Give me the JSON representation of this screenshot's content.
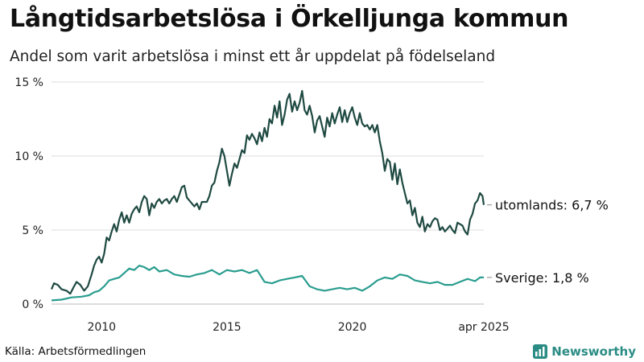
{
  "title": "Långtidsarbetslösa i Örkelljunga kommun",
  "subtitle": "Andel som varit arbetslösa i minst ett år uppdelat på födelseland",
  "source": "Källa: Arbetsförmedlingen",
  "brand": "Newsworthy",
  "chart_data": {
    "type": "line",
    "title": "Långtidsarbetslösa i Örkelljunga kommun",
    "subtitle": "Andel som varit arbetslösa i minst ett år uppdelat på födelseland",
    "x_range": [
      2008.0,
      2025.25
    ],
    "ylim": [
      0,
      15
    ],
    "y_ticks": [
      {
        "value": 0,
        "label": "0 %"
      },
      {
        "value": 5,
        "label": "5 %"
      },
      {
        "value": 10,
        "label": "10 %"
      },
      {
        "value": 15,
        "label": "15 %"
      }
    ],
    "x_ticks": [
      {
        "value": 2010,
        "label": "2010"
      },
      {
        "value": 2015,
        "label": "2015"
      },
      {
        "value": 2020,
        "label": "2020"
      },
      {
        "value": 2025.25,
        "label": "apr 2025"
      }
    ],
    "grid": "horizontal",
    "legend": "end-labels",
    "series": [
      {
        "name": "utomlands",
        "end_label": "utomlands: 6,7 %",
        "color": "#1f4a42",
        "points": [
          [
            2008.0,
            1.0
          ],
          [
            2008.1,
            1.4
          ],
          [
            2008.25,
            1.3
          ],
          [
            2008.4,
            1.0
          ],
          [
            2008.6,
            0.9
          ],
          [
            2008.75,
            0.7
          ],
          [
            2008.9,
            1.2
          ],
          [
            2009.0,
            1.5
          ],
          [
            2009.15,
            1.3
          ],
          [
            2009.3,
            0.9
          ],
          [
            2009.45,
            1.2
          ],
          [
            2009.6,
            2.0
          ],
          [
            2009.7,
            2.6
          ],
          [
            2009.8,
            3.0
          ],
          [
            2009.9,
            3.2
          ],
          [
            2010.0,
            2.8
          ],
          [
            2010.1,
            3.4
          ],
          [
            2010.2,
            4.5
          ],
          [
            2010.3,
            4.3
          ],
          [
            2010.4,
            4.9
          ],
          [
            2010.5,
            5.4
          ],
          [
            2010.6,
            4.9
          ],
          [
            2010.7,
            5.7
          ],
          [
            2010.8,
            6.2
          ],
          [
            2010.9,
            5.5
          ],
          [
            2011.0,
            6.0
          ],
          [
            2011.1,
            5.5
          ],
          [
            2011.2,
            6.1
          ],
          [
            2011.3,
            6.4
          ],
          [
            2011.4,
            6.6
          ],
          [
            2011.5,
            6.2
          ],
          [
            2011.6,
            6.9
          ],
          [
            2011.7,
            7.3
          ],
          [
            2011.8,
            7.1
          ],
          [
            2011.9,
            6.0
          ],
          [
            2012.0,
            6.8
          ],
          [
            2012.1,
            6.5
          ],
          [
            2012.2,
            6.9
          ],
          [
            2012.3,
            7.1
          ],
          [
            2012.4,
            6.8
          ],
          [
            2012.5,
            7.0
          ],
          [
            2012.6,
            7.1
          ],
          [
            2012.7,
            6.8
          ],
          [
            2012.8,
            7.1
          ],
          [
            2012.9,
            7.3
          ],
          [
            2013.0,
            6.9
          ],
          [
            2013.1,
            7.4
          ],
          [
            2013.2,
            7.9
          ],
          [
            2013.3,
            8.0
          ],
          [
            2013.4,
            7.2
          ],
          [
            2013.5,
            7.0
          ],
          [
            2013.6,
            6.8
          ],
          [
            2013.7,
            6.6
          ],
          [
            2013.8,
            6.8
          ],
          [
            2013.9,
            6.4
          ],
          [
            2014.0,
            6.9
          ],
          [
            2014.2,
            6.9
          ],
          [
            2014.3,
            7.3
          ],
          [
            2014.4,
            8.0
          ],
          [
            2014.5,
            8.2
          ],
          [
            2014.6,
            9.0
          ],
          [
            2014.7,
            9.6
          ],
          [
            2014.8,
            10.5
          ],
          [
            2014.9,
            10.0
          ],
          [
            2015.0,
            9.0
          ],
          [
            2015.1,
            8.0
          ],
          [
            2015.2,
            8.8
          ],
          [
            2015.3,
            9.5
          ],
          [
            2015.4,
            9.2
          ],
          [
            2015.5,
            9.8
          ],
          [
            2015.6,
            10.4
          ],
          [
            2015.7,
            10.2
          ],
          [
            2015.8,
            11.4
          ],
          [
            2015.9,
            11.1
          ],
          [
            2016.0,
            11.5
          ],
          [
            2016.1,
            11.2
          ],
          [
            2016.2,
            10.8
          ],
          [
            2016.3,
            11.6
          ],
          [
            2016.4,
            11.0
          ],
          [
            2016.5,
            11.9
          ],
          [
            2016.6,
            11.3
          ],
          [
            2016.7,
            12.5
          ],
          [
            2016.8,
            12.2
          ],
          [
            2016.9,
            13.4
          ],
          [
            2017.0,
            12.6
          ],
          [
            2017.1,
            13.7
          ],
          [
            2017.2,
            12.1
          ],
          [
            2017.3,
            12.8
          ],
          [
            2017.4,
            13.8
          ],
          [
            2017.5,
            14.2
          ],
          [
            2017.6,
            13.0
          ],
          [
            2017.7,
            13.7
          ],
          [
            2017.8,
            13.1
          ],
          [
            2017.9,
            13.6
          ],
          [
            2018.0,
            14.4
          ],
          [
            2018.1,
            13.1
          ],
          [
            2018.2,
            12.8
          ],
          [
            2018.3,
            13.4
          ],
          [
            2018.4,
            12.7
          ],
          [
            2018.5,
            11.6
          ],
          [
            2018.6,
            12.4
          ],
          [
            2018.7,
            12.7
          ],
          [
            2018.8,
            12.0
          ],
          [
            2018.9,
            11.3
          ],
          [
            2019.0,
            12.6
          ],
          [
            2019.1,
            12.0
          ],
          [
            2019.2,
            12.9
          ],
          [
            2019.3,
            12.2
          ],
          [
            2019.4,
            12.8
          ],
          [
            2019.5,
            13.3
          ],
          [
            2019.6,
            12.3
          ],
          [
            2019.7,
            13.1
          ],
          [
            2019.8,
            12.3
          ],
          [
            2019.9,
            12.9
          ],
          [
            2020.0,
            13.3
          ],
          [
            2020.1,
            12.6
          ],
          [
            2020.2,
            12.1
          ],
          [
            2020.3,
            12.9
          ],
          [
            2020.4,
            12.2
          ],
          [
            2020.5,
            12.0
          ],
          [
            2020.6,
            12.1
          ],
          [
            2020.7,
            11.8
          ],
          [
            2020.8,
            12.1
          ],
          [
            2020.9,
            11.6
          ],
          [
            2021.0,
            12.1
          ],
          [
            2021.1,
            11.0
          ],
          [
            2021.2,
            10.2
          ],
          [
            2021.3,
            9.0
          ],
          [
            2021.4,
            9.8
          ],
          [
            2021.5,
            9.6
          ],
          [
            2021.6,
            8.4
          ],
          [
            2021.7,
            9.5
          ],
          [
            2021.8,
            8.1
          ],
          [
            2021.9,
            9.1
          ],
          [
            2022.0,
            8.2
          ],
          [
            2022.1,
            7.5
          ],
          [
            2022.2,
            6.8
          ],
          [
            2022.3,
            7.0
          ],
          [
            2022.4,
            6.0
          ],
          [
            2022.5,
            6.5
          ],
          [
            2022.6,
            5.5
          ],
          [
            2022.7,
            5.2
          ],
          [
            2022.8,
            5.9
          ],
          [
            2022.9,
            4.9
          ],
          [
            2023.0,
            5.4
          ],
          [
            2023.1,
            5.2
          ],
          [
            2023.2,
            5.6
          ],
          [
            2023.3,
            5.8
          ],
          [
            2023.4,
            5.7
          ],
          [
            2023.5,
            5.0
          ],
          [
            2023.6,
            5.2
          ],
          [
            2023.7,
            4.9
          ],
          [
            2023.8,
            5.1
          ],
          [
            2023.9,
            5.3
          ],
          [
            2024.0,
            5.0
          ],
          [
            2024.1,
            4.8
          ],
          [
            2024.2,
            5.5
          ],
          [
            2024.3,
            5.4
          ],
          [
            2024.4,
            5.3
          ],
          [
            2024.5,
            4.9
          ],
          [
            2024.6,
            4.7
          ],
          [
            2024.7,
            5.7
          ],
          [
            2024.8,
            6.1
          ],
          [
            2024.9,
            6.8
          ],
          [
            2025.0,
            7.0
          ],
          [
            2025.1,
            7.5
          ],
          [
            2025.2,
            7.3
          ],
          [
            2025.25,
            6.7
          ]
        ]
      },
      {
        "name": "Sverige",
        "end_label": "Sverige: 1,8 %",
        "color": "#2a9d8f",
        "points": [
          [
            2008.0,
            0.25
          ],
          [
            2008.4,
            0.3
          ],
          [
            2008.8,
            0.45
          ],
          [
            2009.2,
            0.5
          ],
          [
            2009.5,
            0.6
          ],
          [
            2009.7,
            0.8
          ],
          [
            2009.9,
            0.9
          ],
          [
            2010.1,
            1.2
          ],
          [
            2010.3,
            1.6
          ],
          [
            2010.5,
            1.7
          ],
          [
            2010.7,
            1.8
          ],
          [
            2010.9,
            2.1
          ],
          [
            2011.1,
            2.4
          ],
          [
            2011.3,
            2.3
          ],
          [
            2011.5,
            2.6
          ],
          [
            2011.7,
            2.5
          ],
          [
            2011.9,
            2.3
          ],
          [
            2012.1,
            2.5
          ],
          [
            2012.3,
            2.2
          ],
          [
            2012.6,
            2.3
          ],
          [
            2012.9,
            2.0
          ],
          [
            2013.2,
            1.9
          ],
          [
            2013.5,
            1.85
          ],
          [
            2013.8,
            2.0
          ],
          [
            2014.1,
            2.1
          ],
          [
            2014.4,
            2.3
          ],
          [
            2014.7,
            2.0
          ],
          [
            2015.0,
            2.3
          ],
          [
            2015.3,
            2.2
          ],
          [
            2015.6,
            2.3
          ],
          [
            2015.9,
            2.1
          ],
          [
            2016.2,
            2.3
          ],
          [
            2016.5,
            1.5
          ],
          [
            2016.8,
            1.4
          ],
          [
            2017.1,
            1.6
          ],
          [
            2017.4,
            1.7
          ],
          [
            2017.7,
            1.8
          ],
          [
            2018.0,
            1.9
          ],
          [
            2018.3,
            1.2
          ],
          [
            2018.6,
            1.0
          ],
          [
            2018.9,
            0.9
          ],
          [
            2019.2,
            1.0
          ],
          [
            2019.5,
            1.1
          ],
          [
            2019.8,
            1.0
          ],
          [
            2020.1,
            1.1
          ],
          [
            2020.4,
            0.9
          ],
          [
            2020.7,
            1.2
          ],
          [
            2021.0,
            1.6
          ],
          [
            2021.3,
            1.8
          ],
          [
            2021.6,
            1.7
          ],
          [
            2021.9,
            2.0
          ],
          [
            2022.2,
            1.9
          ],
          [
            2022.5,
            1.6
          ],
          [
            2022.8,
            1.5
          ],
          [
            2023.1,
            1.4
          ],
          [
            2023.4,
            1.5
          ],
          [
            2023.7,
            1.3
          ],
          [
            2024.0,
            1.3
          ],
          [
            2024.3,
            1.5
          ],
          [
            2024.6,
            1.7
          ],
          [
            2024.9,
            1.55
          ],
          [
            2025.1,
            1.8
          ],
          [
            2025.25,
            1.8
          ]
        ]
      }
    ]
  }
}
